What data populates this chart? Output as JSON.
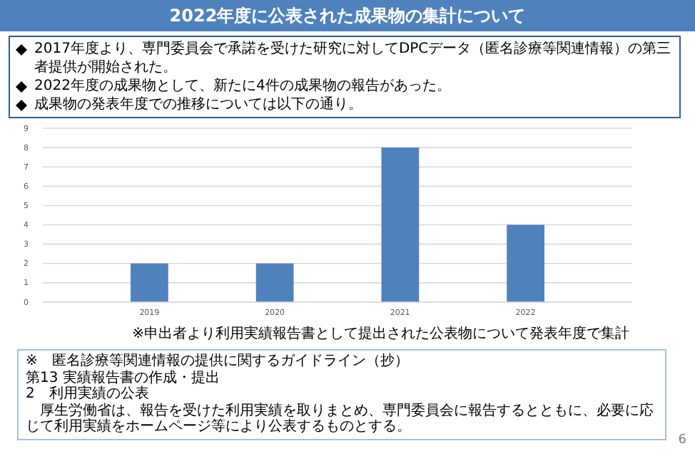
{
  "chart_data": {
    "type": "bar",
    "title": "2022年度に公表された成果物の集計について",
    "categories": [
      "2019",
      "2020",
      "2021",
      "2022"
    ],
    "values": [
      2,
      2,
      8,
      4
    ],
    "color": "#4f81bd",
    "ylim": [
      0,
      9
    ],
    "yticks": [
      0,
      1,
      2,
      3,
      4,
      5,
      6,
      7,
      8,
      9
    ],
    "grid": "y",
    "annotations": [
      "2017年度より、専門委員会で承諾を受けた研究に対してDPCデータ（匿名診療等関連情報）の第三者提供が開始された。",
      "2022年度の成果物として、新たに4件の成果物の報告があった。",
      "成果物の発表年度での推移については以下の通り。",
      "※申出者より利用実績報告書として提出された公表物について発表年度で集計",
      "※　匿名診療等関連情報の提供に関するガイドライン（抄）",
      "第13 実績報告書の作成・提出",
      "2　利用実績の公表",
      "　厚生労働省は、報告を受けた利用実績を取りまとめ、専門委員会に報告するとともに、必要に応じて利用実績をホームページ等により公表するものとする。",
      "6"
    ]
  }
}
